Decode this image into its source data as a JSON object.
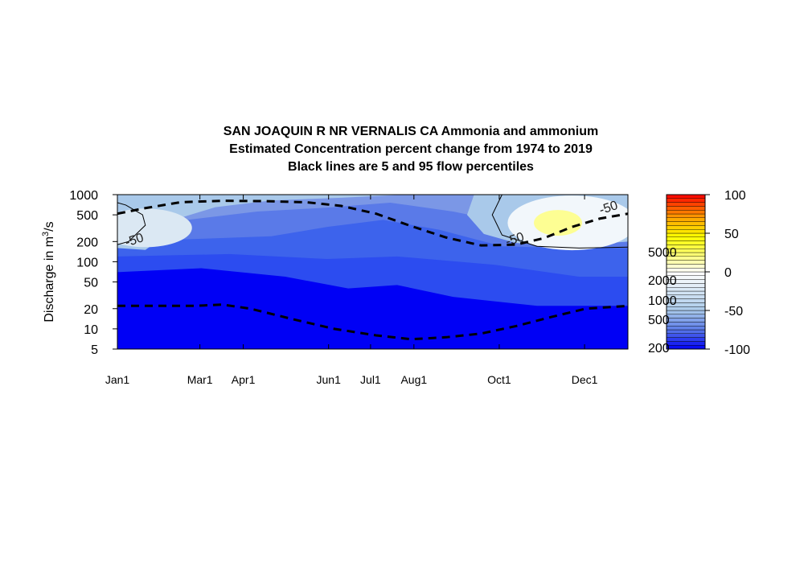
{
  "chart_data": {
    "type": "heatmap",
    "title": [
      "SAN JOAQUIN R NR VERNALIS CA  Ammonia and ammonium",
      "Estimated Concentration percent change from 1974 to 2019",
      "Black lines are 5 and 95 flow percentiles"
    ],
    "ylabel": {
      "main": "Discharge in m",
      "sup": "3",
      "tail": "/s"
    },
    "xlabel": "",
    "y_scale": "log",
    "ylim": [
      5,
      1000
    ],
    "xlim": [
      0,
      365
    ],
    "y_ticks": [
      {
        "label": "1000",
        "value": 1000
      },
      {
        "label": "500",
        "value": 500
      },
      {
        "label": "200",
        "value": 200
      },
      {
        "label": "100",
        "value": 100
      },
      {
        "label": "50",
        "value": 50
      },
      {
        "label": "20",
        "value": 20
      },
      {
        "label": "10",
        "value": 10
      },
      {
        "label": "5",
        "value": 5
      }
    ],
    "x_ticks": [
      {
        "label": "Jan1",
        "value": 0
      },
      {
        "label": "Mar1",
        "value": 59
      },
      {
        "label": "Apr1",
        "value": 90
      },
      {
        "label": "Jun1",
        "value": 151
      },
      {
        "label": "Jul1",
        "value": 181
      },
      {
        "label": "Aug1",
        "value": 212
      },
      {
        "label": "Oct1",
        "value": 273
      },
      {
        "label": "Dec1",
        "value": 334
      }
    ],
    "contour_labels": [
      {
        "text": "-50",
        "x": 13,
        "y": 185
      },
      {
        "text": "-50",
        "x": 285,
        "y": 190
      },
      {
        "text": "-50",
        "x": 352,
        "y": 560
      }
    ],
    "flow_percentile_95": [
      {
        "x": 0,
        "y": 520
      },
      {
        "x": 20,
        "y": 630
      },
      {
        "x": 45,
        "y": 770
      },
      {
        "x": 75,
        "y": 810
      },
      {
        "x": 105,
        "y": 800
      },
      {
        "x": 135,
        "y": 770
      },
      {
        "x": 160,
        "y": 680
      },
      {
        "x": 185,
        "y": 520
      },
      {
        "x": 210,
        "y": 340
      },
      {
        "x": 235,
        "y": 230
      },
      {
        "x": 260,
        "y": 175
      },
      {
        "x": 285,
        "y": 180
      },
      {
        "x": 305,
        "y": 225
      },
      {
        "x": 325,
        "y": 330
      },
      {
        "x": 345,
        "y": 440
      },
      {
        "x": 365,
        "y": 520
      }
    ],
    "flow_percentile_5": [
      {
        "x": 0,
        "y": 22
      },
      {
        "x": 30,
        "y": 22
      },
      {
        "x": 55,
        "y": 22
      },
      {
        "x": 75,
        "y": 23
      },
      {
        "x": 95,
        "y": 20
      },
      {
        "x": 125,
        "y": 14
      },
      {
        "x": 155,
        "y": 10
      },
      {
        "x": 185,
        "y": 8
      },
      {
        "x": 210,
        "y": 7
      },
      {
        "x": 235,
        "y": 7.5
      },
      {
        "x": 260,
        "y": 8.5
      },
      {
        "x": 285,
        "y": 11
      },
      {
        "x": 310,
        "y": 15
      },
      {
        "x": 335,
        "y": 20
      },
      {
        "x": 365,
        "y": 22
      }
    ],
    "colorbar": {
      "min": -100,
      "max": 100,
      "ticks": [
        100,
        50,
        0,
        -50,
        -100
      ],
      "overlay_labels": [
        "5000",
        "2000",
        "1000",
        "500",
        "200"
      ],
      "colors": {
        "low": "#0000f5",
        "mid_blue": "#5a7ae8",
        "light_blue": "#a9c9ea",
        "near_white": "#f2f7fb",
        "white": "#ffffff",
        "pale_yellow": "#ffff80",
        "yellow": "#ffff00",
        "orange": "#ffa000",
        "red": "#ff0000"
      }
    }
  }
}
